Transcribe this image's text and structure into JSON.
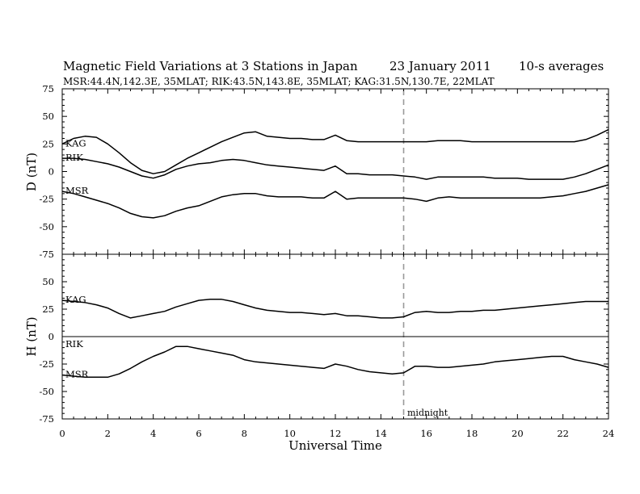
{
  "chart_data": {
    "type": "line",
    "title": "Magnetic Field Variations at 3 Stations in Japan",
    "date": "23 January 2011",
    "resolution": "10-s averages",
    "subtitle": "MSR:44.4N,142.3E, 35MLAT;  RIK:43.5N,143.8E, 35MLAT;  KAG:31.5N,130.7E, 22MLAT",
    "xlabel": "Universal Time",
    "xlim": [
      0,
      24
    ],
    "xticks": [
      "0",
      "2",
      "4",
      "6",
      "8",
      "10",
      "12",
      "14",
      "16",
      "18",
      "20",
      "22",
      "24"
    ],
    "annotation": {
      "x": 15,
      "label": "midnight"
    },
    "panels": [
      {
        "ylabel": "D (nT)",
        "ylim": [
          -75,
          75
        ],
        "yticks": [
          "75",
          "50",
          "25",
          "0",
          "-25",
          "-50",
          "-75"
        ],
        "series": [
          {
            "name": "KAG",
            "x": [
              0,
              0.5,
              1,
              1.5,
              2,
              2.5,
              3,
              3.5,
              4,
              4.5,
              5,
              5.5,
              6,
              6.5,
              7,
              7.5,
              8,
              8.5,
              9,
              9.5,
              10,
              10.5,
              11,
              11.5,
              12,
              12.5,
              13,
              13.5,
              14,
              14.5,
              15,
              15.5,
              16,
              16.5,
              17,
              17.5,
              18,
              18.5,
              19,
              19.5,
              20,
              20.5,
              21,
              21.5,
              22,
              22.5,
              23,
              23.5,
              24
            ],
            "values": [
              25,
              30,
              32,
              31,
              25,
              17,
              8,
              1,
              -2,
              0,
              6,
              12,
              17,
              22,
              27,
              31,
              35,
              36,
              32,
              31,
              30,
              30,
              29,
              29,
              33,
              28,
              27,
              27,
              27,
              27,
              27,
              27,
              27,
              28,
              28,
              28,
              27,
              27,
              27,
              27,
              27,
              27,
              27,
              27,
              27,
              27,
              29,
              33,
              38
            ]
          },
          {
            "name": "RIK",
            "x": [
              0,
              0.5,
              1,
              1.5,
              2,
              2.5,
              3,
              3.5,
              4,
              4.5,
              5,
              5.5,
              6,
              6.5,
              7,
              7.5,
              8,
              8.5,
              9,
              9.5,
              10,
              10.5,
              11,
              11.5,
              12,
              12.5,
              13,
              13.5,
              14,
              14.5,
              15,
              15.5,
              16,
              16.5,
              17,
              17.5,
              18,
              18.5,
              19,
              19.5,
              20,
              20.5,
              21,
              21.5,
              22,
              22.5,
              23,
              23.5,
              24
            ],
            "values": [
              12,
              12,
              11,
              9,
              7,
              4,
              0,
              -4,
              -6,
              -3,
              2,
              5,
              7,
              8,
              10,
              11,
              10,
              8,
              6,
              5,
              4,
              3,
              2,
              1,
              5,
              -2,
              -2,
              -3,
              -3,
              -3,
              -4,
              -5,
              -7,
              -5,
              -5,
              -5,
              -5,
              -5,
              -6,
              -6,
              -6,
              -7,
              -7,
              -7,
              -7,
              -5,
              -2,
              2,
              6
            ]
          },
          {
            "name": "MSR",
            "x": [
              0,
              0.5,
              1,
              1.5,
              2,
              2.5,
              3,
              3.5,
              4,
              4.5,
              5,
              5.5,
              6,
              6.5,
              7,
              7.5,
              8,
              8.5,
              9,
              9.5,
              10,
              10.5,
              11,
              11.5,
              12,
              12.5,
              13,
              13.5,
              14,
              14.5,
              15,
              15.5,
              16,
              16.5,
              17,
              17.5,
              18,
              18.5,
              19,
              19.5,
              20,
              20.5,
              21,
              21.5,
              22,
              22.5,
              23,
              23.5,
              24
            ],
            "values": [
              -18,
              -20,
              -23,
              -26,
              -29,
              -33,
              -38,
              -41,
              -42,
              -40,
              -36,
              -33,
              -31,
              -27,
              -23,
              -21,
              -20,
              -20,
              -22,
              -23,
              -23,
              -23,
              -24,
              -24,
              -18,
              -25,
              -24,
              -24,
              -24,
              -24,
              -24,
              -25,
              -27,
              -24,
              -23,
              -24,
              -24,
              -24,
              -24,
              -24,
              -24,
              -24,
              -24,
              -23,
              -22,
              -20,
              -18,
              -15,
              -12
            ]
          }
        ]
      },
      {
        "ylabel": "H (nT)",
        "ylim": [
          -75,
          75
        ],
        "yticks": [
          "75",
          "50",
          "25",
          "0",
          "-25",
          "-50",
          "-75"
        ],
        "zero_line": true,
        "series": [
          {
            "name": "KAG",
            "x": [
              0,
              0.5,
              1,
              1.5,
              2,
              2.5,
              3,
              3.5,
              4,
              4.5,
              5,
              5.5,
              6,
              6.5,
              7,
              7.5,
              8,
              8.5,
              9,
              9.5,
              10,
              10.5,
              11,
              11.5,
              12,
              12.5,
              13,
              13.5,
              14,
              14.5,
              15,
              15.5,
              16,
              16.5,
              17,
              17.5,
              18,
              18.5,
              19,
              19.5,
              20,
              20.5,
              21,
              21.5,
              22,
              22.5,
              23,
              23.5,
              24
            ],
            "values": [
              33,
              32,
              31,
              29,
              26,
              21,
              17,
              19,
              21,
              23,
              27,
              30,
              33,
              34,
              34,
              32,
              29,
              26,
              24,
              23,
              22,
              22,
              21,
              20,
              21,
              19,
              19,
              18,
              17,
              17,
              18,
              22,
              23,
              22,
              22,
              23,
              23,
              24,
              24,
              25,
              26,
              27,
              28,
              29,
              30,
              31,
              32,
              32,
              32
            ]
          },
          {
            "name": "RIK",
            "x": [],
            "values": []
          },
          {
            "name": "MSR",
            "x": [
              0,
              0.5,
              1,
              1.5,
              2,
              2.5,
              3,
              3.5,
              4,
              4.5,
              5,
              5.5,
              6,
              6.5,
              7,
              7.5,
              8,
              8.5,
              9,
              9.5,
              10,
              10.5,
              11,
              11.5,
              12,
              12.5,
              13,
              13.5,
              14,
              14.5,
              15,
              15.5,
              16,
              16.5,
              17,
              17.5,
              18,
              18.5,
              19,
              19.5,
              20,
              20.5,
              21,
              21.5,
              22,
              22.5,
              23,
              23.5,
              24
            ],
            "values": [
              -35,
              -36,
              -37,
              -37,
              -37,
              -34,
              -29,
              -23,
              -18,
              -14,
              -9,
              -9,
              -11,
              -13,
              -15,
              -17,
              -21,
              -23,
              -24,
              -25,
              -26,
              -27,
              -28,
              -29,
              -25,
              -27,
              -30,
              -32,
              -33,
              -34,
              -33,
              -27,
              -27,
              -28,
              -28,
              -27,
              -26,
              -25,
              -23,
              -22,
              -21,
              -20,
              -19,
              -18,
              -18,
              -21,
              -23,
              -25,
              -28
            ]
          }
        ]
      }
    ]
  }
}
